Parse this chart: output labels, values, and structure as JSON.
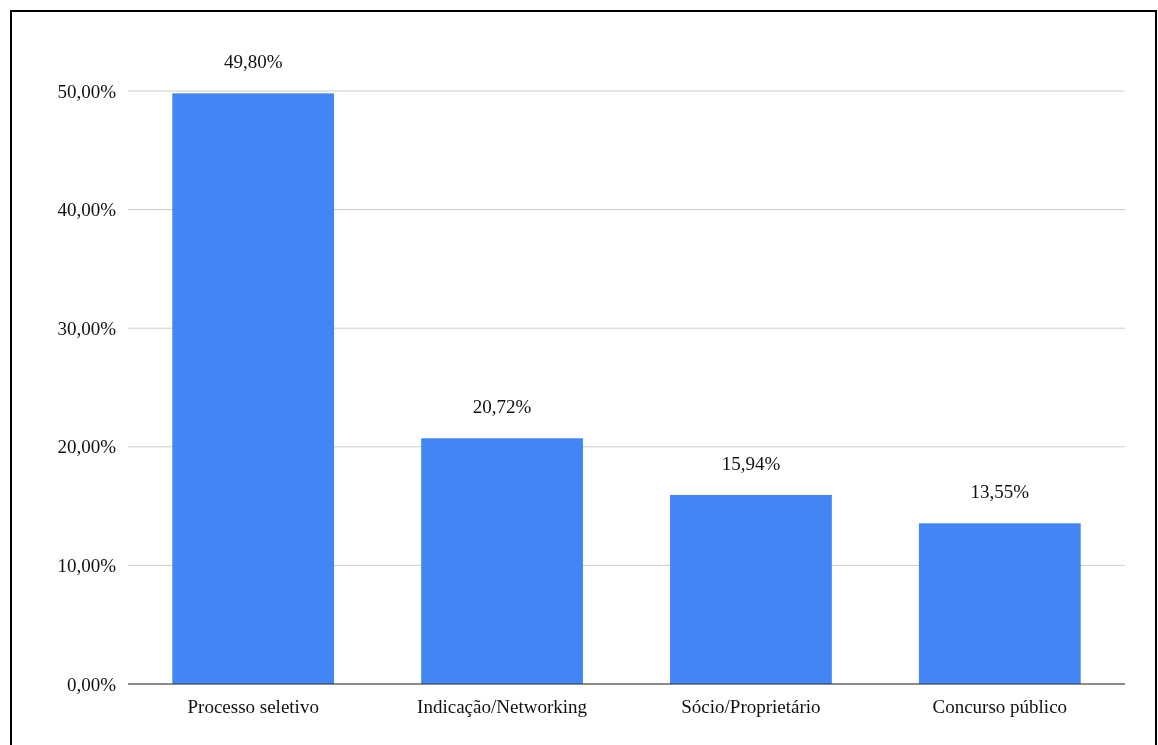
{
  "chart_data": {
    "type": "bar",
    "categories": [
      "Processo seletivo",
      "Indicação/Networking",
      "Sócio/Proprietário",
      "Concurso público"
    ],
    "values": [
      49.8,
      20.72,
      15.94,
      13.55
    ],
    "color": "#4285f4",
    "value_labels": [
      "49,80%",
      "20,72%",
      "15,94%",
      "13,55%"
    ],
    "ylim": [
      0,
      50
    ],
    "yticks": [
      {
        "value": 0,
        "label": "0,00%"
      },
      {
        "value": 10,
        "label": "10,00%"
      },
      {
        "value": 20,
        "label": "20,00%"
      },
      {
        "value": 30,
        "label": "30,00%"
      },
      {
        "value": 40,
        "label": "40,00%"
      },
      {
        "value": 50,
        "label": "50,00%"
      }
    ],
    "grid": "y"
  }
}
